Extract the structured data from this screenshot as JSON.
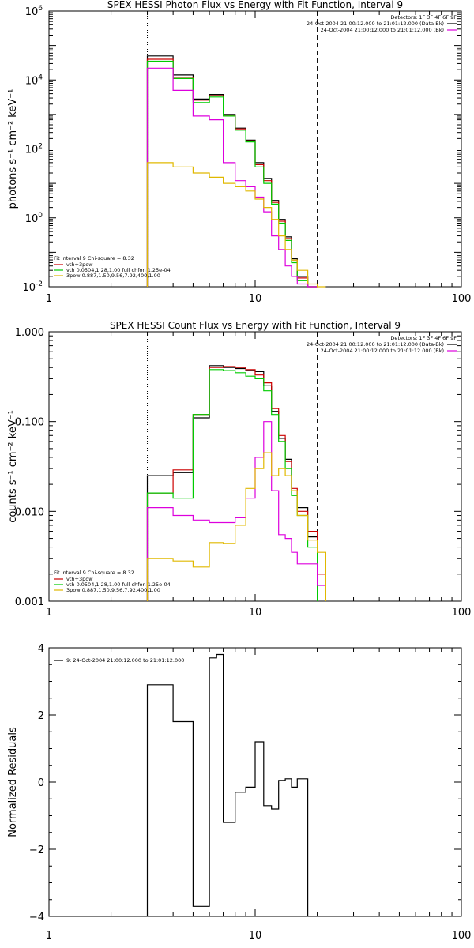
{
  "colors": {
    "data": "#000000",
    "fit_total": "#cc0000",
    "thermal": "#00cc00",
    "power_law": "#dd00dd",
    "background": "#e0b800"
  },
  "chart_data": [
    {
      "id": "photon",
      "type": "line",
      "step": true,
      "title": "SPEX HESSI Photon Flux vs Energy with Fit Function, Interval 9",
      "ylabel": "photons s⁻¹ cm⁻² keV⁻¹",
      "xlabel": "",
      "x_scale": "log",
      "y_scale": "log",
      "xlim": [
        1,
        100
      ],
      "ylim": [
        0.01,
        1000000
      ],
      "x_ticks": [
        {
          "v": 1,
          "label": "1"
        },
        {
          "v": 10,
          "label": "10"
        },
        {
          "v": 100,
          "label": "100"
        }
      ],
      "y_ticks": [
        {
          "v": 0.01,
          "base": "10",
          "exp": "-2"
        },
        {
          "v": 1,
          "base": "10",
          "exp": "0"
        },
        {
          "v": 100,
          "base": "10",
          "exp": "2"
        },
        {
          "v": 10000,
          "base": "10",
          "exp": "4"
        },
        {
          "v": 1000000,
          "base": "10",
          "exp": "6"
        }
      ],
      "vlines": [
        {
          "x": 3,
          "style": "dotted"
        },
        {
          "x": 20,
          "style": "dashed"
        }
      ],
      "header_lines": [
        "Detectors: 1F 3F 4F 6F 9F",
        "24-Oct-2004 21:00:12.000 to 21:01:12.000 (Data-Bk)",
        "24-Oct-2004 21:00:12.000 to 21:01:12.000 (Bk)"
      ],
      "header_series": [
        "data",
        "power_law"
      ],
      "legend_title": "Fit Interval 9   Chi-square = 8.32",
      "legend": [
        {
          "series": "fit_total",
          "label": "vth+3pow"
        },
        {
          "series": "thermal",
          "label": "vth 0.0504,1.28,1.00  full chfon 1.25e-04"
        },
        {
          "series": "background",
          "label": "3pow 0.887,1.50,9.56,7.92,400,1.00"
        }
      ],
      "edges": [
        3,
        4,
        5,
        6,
        7,
        8,
        9,
        10,
        11,
        12,
        13,
        14,
        15,
        16,
        18,
        20,
        22
      ],
      "series": [
        {
          "key": "data",
          "values": [
            50000,
            14000,
            2800,
            3800,
            1000,
            400,
            180,
            40,
            14,
            3.2,
            0.9,
            0.28,
            0.065,
            0.02,
            0.01,
            null
          ]
        },
        {
          "key": "fit_total",
          "values": [
            40000,
            12000,
            2600,
            3500,
            950,
            380,
            170,
            35,
            12,
            2.8,
            0.8,
            0.25,
            0.06,
            0.018,
            0.009,
            null
          ]
        },
        {
          "key": "thermal",
          "values": [
            35000,
            11000,
            2200,
            3200,
            900,
            350,
            160,
            30,
            10,
            2.5,
            0.7,
            0.22,
            0.05,
            0.015,
            0.007,
            null
          ]
        },
        {
          "key": "power_law",
          "values": [
            22000,
            5000,
            900,
            700,
            40,
            12,
            8,
            4,
            1.5,
            0.3,
            0.12,
            0.04,
            0.02,
            0.012,
            0.008,
            null
          ]
        },
        {
          "key": "background",
          "values": [
            40,
            30,
            20,
            15,
            10,
            8,
            6,
            3.5,
            2,
            0.9,
            0.3,
            0.12,
            0.06,
            0.03,
            0.012,
            0.008
          ]
        }
      ]
    },
    {
      "id": "count",
      "type": "line",
      "step": true,
      "title": "SPEX HESSI Count Flux vs Energy with Fit Function, Interval 9",
      "ylabel": "counts s⁻¹ cm⁻² keV⁻¹",
      "xlabel": "",
      "x_scale": "log",
      "y_scale": "log",
      "xlim": [
        1,
        100
      ],
      "ylim": [
        0.001,
        1
      ],
      "x_ticks": [
        {
          "v": 1,
          "label": "1"
        },
        {
          "v": 10,
          "label": "10"
        },
        {
          "v": 100,
          "label": "100"
        }
      ],
      "y_ticks": [
        {
          "v": 0.001,
          "label": "0.001"
        },
        {
          "v": 0.01,
          "label": "0.010"
        },
        {
          "v": 0.1,
          "label": "0.100"
        },
        {
          "v": 1,
          "label": "1.000"
        }
      ],
      "vlines": [
        {
          "x": 3,
          "style": "dotted"
        },
        {
          "x": 20,
          "style": "dashed"
        }
      ],
      "header_lines": [
        "Detectors: 1F 3F 4F 6F 9F",
        "24-Oct-2004 21:00:12.000 to 21:01:12.000 (Data-Bk)",
        "24-Oct-2004 21:00:12.000 to 21:01:12.000 (Bk)"
      ],
      "header_series": [
        "data",
        "power_law"
      ],
      "legend_title": "Fit Interval 9   Chi-square = 8.32",
      "legend": [
        {
          "series": "fit_total",
          "label": "vth+3pow"
        },
        {
          "series": "thermal",
          "label": "vth 0.0504,1.28,1.00  full chfon 1.25e-04"
        },
        {
          "series": "background",
          "label": "3pow 0.887,1.50,9.56,7.92,400,1.00"
        }
      ],
      "edges": [
        3,
        4,
        5,
        6,
        7,
        8,
        9,
        10,
        11,
        12,
        13,
        14,
        15,
        16,
        18,
        20,
        22
      ],
      "series": [
        {
          "key": "data",
          "values": [
            0.025,
            0.027,
            0.11,
            0.42,
            0.4,
            0.39,
            0.37,
            0.36,
            0.25,
            0.13,
            0.065,
            0.038,
            0.017,
            0.011,
            0.0052,
            null
          ]
        },
        {
          "key": "fit_total",
          "values": [
            0.016,
            0.029,
            0.12,
            0.4,
            0.41,
            0.4,
            0.38,
            0.33,
            0.27,
            0.14,
            0.07,
            0.036,
            0.018,
            0.01,
            0.006,
            0.002
          ]
        },
        {
          "key": "thermal",
          "values": [
            0.016,
            0.014,
            0.12,
            0.38,
            0.37,
            0.35,
            0.32,
            0.3,
            0.22,
            0.12,
            0.06,
            0.03,
            0.015,
            0.009,
            0.004,
            null
          ]
        },
        {
          "key": "power_law",
          "values": [
            0.011,
            0.009,
            0.008,
            0.0075,
            0.0075,
            0.0085,
            0.014,
            0.04,
            0.1,
            0.017,
            0.0055,
            0.005,
            0.0035,
            0.0026,
            0.0026,
            0.0015
          ]
        },
        {
          "key": "background",
          "values": [
            0.003,
            0.0028,
            0.0024,
            0.0045,
            0.0044,
            0.007,
            0.018,
            0.03,
            0.045,
            0.025,
            0.03,
            0.025,
            0.017,
            0.009,
            0.0048,
            0.0035
          ]
        }
      ]
    },
    {
      "id": "residuals",
      "type": "line",
      "step": true,
      "title": "",
      "ylabel": "Normalized Residuals",
      "xlabel": "",
      "x_scale": "log",
      "y_scale": "linear",
      "xlim": [
        1,
        100
      ],
      "ylim": [
        -4,
        4
      ],
      "x_ticks": [
        {
          "v": 1,
          "label": "1"
        },
        {
          "v": 10,
          "label": "10"
        },
        {
          "v": 100,
          "label": "100"
        }
      ],
      "y_ticks": [
        {
          "v": -4,
          "label": "−4"
        },
        {
          "v": -2,
          "label": "−2"
        },
        {
          "v": 0,
          "label": "0"
        },
        {
          "v": 2,
          "label": "2"
        },
        {
          "v": 4,
          "label": "4"
        }
      ],
      "legend": [
        {
          "series": "data",
          "label": "9: 24-Oct-2004 21:00:12.000 to 21:01:12.000"
        }
      ],
      "edges": [
        3,
        4,
        5,
        6,
        6.5,
        7,
        8,
        9,
        10,
        11,
        12,
        13,
        14,
        15,
        16,
        18,
        20
      ],
      "series": [
        {
          "key": "data",
          "values": [
            2.9,
            1.8,
            -3.7,
            3.7,
            3.8,
            -1.2,
            -0.3,
            -0.15,
            1.2,
            -0.7,
            -0.8,
            0.05,
            0.1,
            -0.15,
            0.1,
            null
          ]
        }
      ]
    }
  ]
}
